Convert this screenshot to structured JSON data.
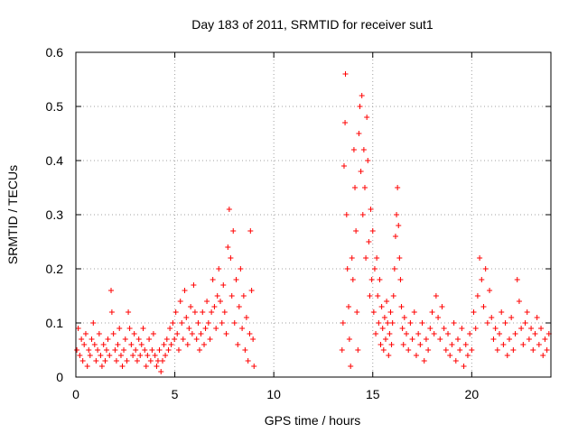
{
  "chart_data": {
    "type": "scatter",
    "title": "Day 183 of 2011, SRMTID for receiver sut1",
    "xlabel": "GPS time / hours",
    "ylabel": "SRMTID / TECUs",
    "xlim": [
      0,
      24
    ],
    "ylim": [
      0,
      0.6
    ],
    "xticks": [
      0,
      5,
      10,
      15,
      20
    ],
    "yticks": [
      0,
      0.1,
      0.2,
      0.3,
      0.4,
      0.5,
      0.6
    ],
    "xtick_labels": [
      "0",
      "5",
      "10",
      "15",
      "20"
    ],
    "ytick_labels": [
      "0",
      "0.1",
      "0.2",
      "0.3",
      "0.4",
      "0.5",
      "0.6"
    ],
    "grid": true,
    "marker": "+",
    "marker_color": "#ff0000",
    "series": [
      {
        "name": "SRMTID",
        "points": [
          [
            0.05,
            0.05
          ],
          [
            0.12,
            0.09
          ],
          [
            0.2,
            0.04
          ],
          [
            0.28,
            0.07
          ],
          [
            0.35,
            0.03
          ],
          [
            0.42,
            0.06
          ],
          [
            0.5,
            0.08
          ],
          [
            0.58,
            0.02
          ],
          [
            0.65,
            0.05
          ],
          [
            0.72,
            0.04
          ],
          [
            0.8,
            0.07
          ],
          [
            0.88,
            0.1
          ],
          [
            0.95,
            0.06
          ],
          [
            1.02,
            0.03
          ],
          [
            1.1,
            0.05
          ],
          [
            1.18,
            0.08
          ],
          [
            1.25,
            0.04
          ],
          [
            1.32,
            0.02
          ],
          [
            1.4,
            0.06
          ],
          [
            1.48,
            0.03
          ],
          [
            1.55,
            0.05
          ],
          [
            1.62,
            0.07
          ],
          [
            1.7,
            0.04
          ],
          [
            1.78,
            0.16
          ],
          [
            1.82,
            0.12
          ],
          [
            1.9,
            0.08
          ],
          [
            1.98,
            0.05
          ],
          [
            2.05,
            0.03
          ],
          [
            2.12,
            0.06
          ],
          [
            2.2,
            0.09
          ],
          [
            2.28,
            0.04
          ],
          [
            2.35,
            0.02
          ],
          [
            2.42,
            0.05
          ],
          [
            2.5,
            0.07
          ],
          [
            2.58,
            0.03
          ],
          [
            2.65,
            0.12
          ],
          [
            2.72,
            0.09
          ],
          [
            2.8,
            0.06
          ],
          [
            2.88,
            0.04
          ],
          [
            2.95,
            0.08
          ],
          [
            3.02,
            0.05
          ],
          [
            3.1,
            0.03
          ],
          [
            3.18,
            0.07
          ],
          [
            3.25,
            0.04
          ],
          [
            3.32,
            0.06
          ],
          [
            3.4,
            0.09
          ],
          [
            3.48,
            0.05
          ],
          [
            3.55,
            0.02
          ],
          [
            3.62,
            0.04
          ],
          [
            3.7,
            0.07
          ],
          [
            3.78,
            0.03
          ],
          [
            3.85,
            0.05
          ],
          [
            3.92,
            0.08
          ],
          [
            4.0,
            0.04
          ],
          [
            4.08,
            0.02
          ],
          [
            4.15,
            0.03
          ],
          [
            4.22,
            0.05
          ],
          [
            4.3,
            0.01
          ],
          [
            4.38,
            0.03
          ],
          [
            4.45,
            0.06
          ],
          [
            4.52,
            0.04
          ],
          [
            4.6,
            0.07
          ],
          [
            4.68,
            0.05
          ],
          [
            4.75,
            0.09
          ],
          [
            4.82,
            0.06
          ],
          [
            4.9,
            0.1
          ],
          [
            4.98,
            0.07
          ],
          [
            5.05,
            0.12
          ],
          [
            5.12,
            0.08
          ],
          [
            5.2,
            0.05
          ],
          [
            5.28,
            0.14
          ],
          [
            5.35,
            0.1
          ],
          [
            5.42,
            0.07
          ],
          [
            5.5,
            0.16
          ],
          [
            5.58,
            0.11
          ],
          [
            5.65,
            0.06
          ],
          [
            5.72,
            0.09
          ],
          [
            5.8,
            0.13
          ],
          [
            5.88,
            0.08
          ],
          [
            5.95,
            0.17
          ],
          [
            6.02,
            0.12
          ],
          [
            6.1,
            0.07
          ],
          [
            6.18,
            0.1
          ],
          [
            6.25,
            0.05
          ],
          [
            6.32,
            0.08
          ],
          [
            6.4,
            0.12
          ],
          [
            6.48,
            0.06
          ],
          [
            6.55,
            0.09
          ],
          [
            6.62,
            0.14
          ],
          [
            6.7,
            0.1
          ],
          [
            6.78,
            0.07
          ],
          [
            6.85,
            0.12
          ],
          [
            6.92,
            0.18
          ],
          [
            7.0,
            0.13
          ],
          [
            7.08,
            0.09
          ],
          [
            7.15,
            0.15
          ],
          [
            7.22,
            0.2
          ],
          [
            7.3,
            0.14
          ],
          [
            7.38,
            0.1
          ],
          [
            7.45,
            0.17
          ],
          [
            7.52,
            0.12
          ],
          [
            7.6,
            0.08
          ],
          [
            7.68,
            0.24
          ],
          [
            7.75,
            0.31
          ],
          [
            7.82,
            0.22
          ],
          [
            7.88,
            0.15
          ],
          [
            7.95,
            0.27
          ],
          [
            8.02,
            0.1
          ],
          [
            8.1,
            0.18
          ],
          [
            8.18,
            0.06
          ],
          [
            8.25,
            0.13
          ],
          [
            8.32,
            0.2
          ],
          [
            8.4,
            0.09
          ],
          [
            8.48,
            0.15
          ],
          [
            8.55,
            0.05
          ],
          [
            8.62,
            0.11
          ],
          [
            8.7,
            0.03
          ],
          [
            8.78,
            0.08
          ],
          [
            8.82,
            0.27
          ],
          [
            8.88,
            0.16
          ],
          [
            8.95,
            0.07
          ],
          [
            9.0,
            0.02
          ],
          [
            13.45,
            0.05
          ],
          [
            13.5,
            0.1
          ],
          [
            13.55,
            0.39
          ],
          [
            13.6,
            0.47
          ],
          [
            13.62,
            0.56
          ],
          [
            13.68,
            0.3
          ],
          [
            13.72,
            0.2
          ],
          [
            13.78,
            0.13
          ],
          [
            13.82,
            0.07
          ],
          [
            13.88,
            0.02
          ],
          [
            13.95,
            0.22
          ],
          [
            14.0,
            0.18
          ],
          [
            14.05,
            0.42
          ],
          [
            14.1,
            0.35
          ],
          [
            14.15,
            0.27
          ],
          [
            14.2,
            0.12
          ],
          [
            14.25,
            0.05
          ],
          [
            14.3,
            0.45
          ],
          [
            14.35,
            0.5
          ],
          [
            14.4,
            0.38
          ],
          [
            14.45,
            0.52
          ],
          [
            14.5,
            0.3
          ],
          [
            14.55,
            0.42
          ],
          [
            14.6,
            0.35
          ],
          [
            14.65,
            0.22
          ],
          [
            14.7,
            0.48
          ],
          [
            14.75,
            0.4
          ],
          [
            14.8,
            0.25
          ],
          [
            14.85,
            0.15
          ],
          [
            14.9,
            0.31
          ],
          [
            14.95,
            0.18
          ],
          [
            15.0,
            0.27
          ],
          [
            15.05,
            0.12
          ],
          [
            15.1,
            0.2
          ],
          [
            15.15,
            0.08
          ],
          [
            15.2,
            0.22
          ],
          [
            15.25,
            0.15
          ],
          [
            15.3,
            0.1
          ],
          [
            15.35,
            0.18
          ],
          [
            15.4,
            0.06
          ],
          [
            15.45,
            0.13
          ],
          [
            15.5,
            0.09
          ],
          [
            15.55,
            0.05
          ],
          [
            15.6,
            0.11
          ],
          [
            15.65,
            0.07
          ],
          [
            15.7,
            0.14
          ],
          [
            15.75,
            0.1
          ],
          [
            15.8,
            0.04
          ],
          [
            15.85,
            0.08
          ],
          [
            15.9,
            0.12
          ],
          [
            15.95,
            0.06
          ],
          [
            16.0,
            0.1
          ],
          [
            16.05,
            0.15
          ],
          [
            16.1,
            0.2
          ],
          [
            16.15,
            0.26
          ],
          [
            16.2,
            0.3
          ],
          [
            16.25,
            0.35
          ],
          [
            16.3,
            0.28
          ],
          [
            16.35,
            0.22
          ],
          [
            16.4,
            0.18
          ],
          [
            16.45,
            0.13
          ],
          [
            16.5,
            0.09
          ],
          [
            16.55,
            0.06
          ],
          [
            16.6,
            0.11
          ],
          [
            16.7,
            0.08
          ],
          [
            16.8,
            0.05
          ],
          [
            16.9,
            0.1
          ],
          [
            17.0,
            0.07
          ],
          [
            17.1,
            0.12
          ],
          [
            17.2,
            0.04
          ],
          [
            17.3,
            0.08
          ],
          [
            17.4,
            0.06
          ],
          [
            17.5,
            0.1
          ],
          [
            17.6,
            0.03
          ],
          [
            17.7,
            0.07
          ],
          [
            17.8,
            0.05
          ],
          [
            17.9,
            0.09
          ],
          [
            18.0,
            0.12
          ],
          [
            18.1,
            0.08
          ],
          [
            18.2,
            0.15
          ],
          [
            18.3,
            0.11
          ],
          [
            18.4,
            0.07
          ],
          [
            18.5,
            0.13
          ],
          [
            18.6,
            0.09
          ],
          [
            18.7,
            0.05
          ],
          [
            18.8,
            0.08
          ],
          [
            18.9,
            0.04
          ],
          [
            19.0,
            0.06
          ],
          [
            19.1,
            0.1
          ],
          [
            19.2,
            0.03
          ],
          [
            19.3,
            0.07
          ],
          [
            19.4,
            0.05
          ],
          [
            19.5,
            0.09
          ],
          [
            19.6,
            0.02
          ],
          [
            19.7,
            0.06
          ],
          [
            19.8,
            0.04
          ],
          [
            19.9,
            0.08
          ],
          [
            20.0,
            0.05
          ],
          [
            20.1,
            0.12
          ],
          [
            20.2,
            0.09
          ],
          [
            20.3,
            0.15
          ],
          [
            20.4,
            0.22
          ],
          [
            20.5,
            0.18
          ],
          [
            20.6,
            0.13
          ],
          [
            20.7,
            0.2
          ],
          [
            20.8,
            0.1
          ],
          [
            20.9,
            0.16
          ],
          [
            21.0,
            0.11
          ],
          [
            21.1,
            0.07
          ],
          [
            21.2,
            0.09
          ],
          [
            21.3,
            0.05
          ],
          [
            21.4,
            0.08
          ],
          [
            21.5,
            0.12
          ],
          [
            21.6,
            0.06
          ],
          [
            21.7,
            0.1
          ],
          [
            21.8,
            0.04
          ],
          [
            21.9,
            0.07
          ],
          [
            22.0,
            0.11
          ],
          [
            22.1,
            0.05
          ],
          [
            22.2,
            0.08
          ],
          [
            22.3,
            0.18
          ],
          [
            22.4,
            0.14
          ],
          [
            22.5,
            0.09
          ],
          [
            22.6,
            0.06
          ],
          [
            22.7,
            0.1
          ],
          [
            22.8,
            0.12
          ],
          [
            22.9,
            0.07
          ],
          [
            23.0,
            0.09
          ],
          [
            23.1,
            0.05
          ],
          [
            23.2,
            0.08
          ],
          [
            23.3,
            0.11
          ],
          [
            23.4,
            0.06
          ],
          [
            23.5,
            0.09
          ],
          [
            23.6,
            0.04
          ],
          [
            23.7,
            0.07
          ],
          [
            23.8,
            0.05
          ],
          [
            23.9,
            0.08
          ]
        ]
      }
    ]
  }
}
